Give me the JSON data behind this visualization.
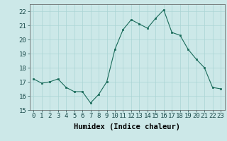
{
  "x": [
    0,
    1,
    2,
    3,
    4,
    5,
    6,
    7,
    8,
    9,
    10,
    11,
    12,
    13,
    14,
    15,
    16,
    17,
    18,
    19,
    20,
    21,
    22,
    23
  ],
  "y": [
    17.2,
    16.9,
    17.0,
    17.2,
    16.6,
    16.3,
    16.3,
    15.5,
    16.1,
    17.0,
    19.3,
    20.7,
    21.4,
    21.1,
    20.8,
    21.5,
    22.1,
    20.5,
    20.3,
    19.3,
    18.6,
    18.0,
    16.6,
    16.5
  ],
  "line_color": "#1a6b5a",
  "marker_color": "#1a6b5a",
  "bg_color": "#cce8e8",
  "grid_color": "#aad4d4",
  "xlabel": "Humidex (Indice chaleur)",
  "ylim": [
    15,
    22.5
  ],
  "yticks": [
    15,
    16,
    17,
    18,
    19,
    20,
    21,
    22
  ],
  "xticks": [
    0,
    1,
    2,
    3,
    4,
    5,
    6,
    7,
    8,
    9,
    10,
    11,
    12,
    13,
    14,
    15,
    16,
    17,
    18,
    19,
    20,
    21,
    22,
    23
  ],
  "xlabel_fontsize": 7.5,
  "tick_fontsize": 6.5
}
